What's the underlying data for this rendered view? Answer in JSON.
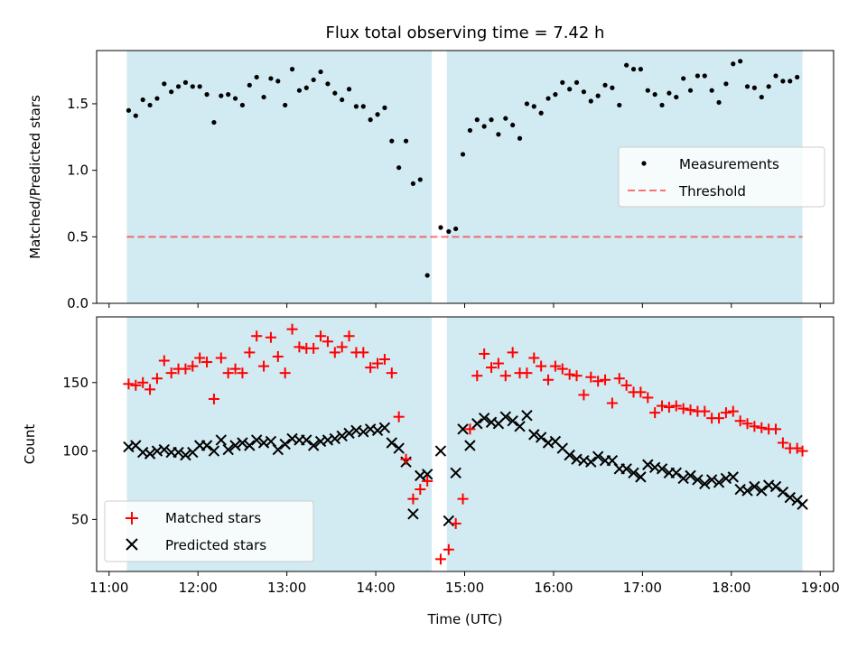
{
  "chart_data": {
    "type": "scatter",
    "title": "Flux total observing time = 7.42 h",
    "xlabel": "Time (UTC)",
    "x_tick_labels": [
      "11:00",
      "12:00",
      "13:00",
      "14:00",
      "15:00",
      "16:00",
      "17:00",
      "18:00",
      "19:00"
    ],
    "x_tick_values": [
      11,
      12,
      13,
      14,
      15,
      16,
      17,
      18,
      19
    ],
    "xlim": [
      10.86,
      19.15
    ],
    "colors": {
      "shade": "#add8e6",
      "measure": "#000000",
      "threshold": "#ff0000",
      "matched": "#ff0000",
      "predicted": "#000000"
    },
    "observing_windows": [
      [
        11.2,
        14.63
      ],
      [
        14.8,
        18.8
      ]
    ],
    "top": {
      "ylabel": "Matched/Predicted stars",
      "ylim": [
        0,
        1.9
      ],
      "y_tick_values": [
        0,
        0.5,
        1,
        1.5
      ],
      "y_tick_labels": [
        "0.0",
        "0.5",
        "1.0",
        "1.5"
      ],
      "legend": {
        "position": "center-right",
        "entries": [
          "Measurements",
          "Threshold"
        ]
      },
      "threshold": 0.5,
      "series": [
        {
          "name": "Measurements",
          "marker": "dot",
          "x": [
            11.22,
            11.3,
            11.38,
            11.46,
            11.54,
            11.62,
            11.7,
            11.78,
            11.86,
            11.94,
            12.02,
            12.1,
            12.18,
            12.26,
            12.34,
            12.42,
            12.5,
            12.58,
            12.66,
            12.74,
            12.82,
            12.9,
            12.98,
            13.06,
            13.14,
            13.22,
            13.3,
            13.38,
            13.46,
            13.54,
            13.62,
            13.7,
            13.78,
            13.86,
            13.94,
            14.02,
            14.1,
            14.18,
            14.26,
            14.34,
            14.42,
            14.5,
            14.58,
            14.73,
            14.82,
            14.9,
            14.98,
            15.06,
            15.14,
            15.22,
            15.3,
            15.38,
            15.46,
            15.54,
            15.62,
            15.7,
            15.78,
            15.86,
            15.94,
            16.02,
            16.1,
            16.18,
            16.26,
            16.34,
            16.42,
            16.5,
            16.58,
            16.66,
            16.74,
            16.82,
            16.9,
            16.98,
            17.06,
            17.14,
            17.22,
            17.3,
            17.38,
            17.46,
            17.54,
            17.62,
            17.7,
            17.78,
            17.86,
            17.94,
            18.02,
            18.1,
            18.18,
            18.26,
            18.34,
            18.42,
            18.5,
            18.58,
            18.66,
            18.74
          ],
          "y": [
            1.45,
            1.41,
            1.53,
            1.49,
            1.54,
            1.65,
            1.59,
            1.63,
            1.66,
            1.63,
            1.63,
            1.57,
            1.36,
            1.56,
            1.57,
            1.54,
            1.49,
            1.64,
            1.7,
            1.55,
            1.69,
            1.67,
            1.49,
            1.76,
            1.6,
            1.62,
            1.68,
            1.74,
            1.65,
            1.58,
            1.53,
            1.61,
            1.48,
            1.48,
            1.38,
            1.42,
            1.47,
            1.22,
            1.02,
            1.22,
            0.9,
            0.93,
            0.21,
            0.57,
            0.54,
            0.56,
            1.12,
            1.3,
            1.38,
            1.33,
            1.38,
            1.27,
            1.39,
            1.34,
            1.24,
            1.5,
            1.48,
            1.43,
            1.54,
            1.57,
            1.66,
            1.61,
            1.66,
            1.59,
            1.52,
            1.56,
            1.64,
            1.62,
            1.49,
            1.79,
            1.76,
            1.76,
            1.6,
            1.57,
            1.49,
            1.58,
            1.55,
            1.69,
            1.6,
            1.71,
            1.71,
            1.6,
            1.51,
            1.65,
            1.8,
            1.82,
            1.63,
            1.62,
            1.55,
            1.63,
            1.71,
            1.67,
            1.67,
            1.7
          ]
        }
      ]
    },
    "bottom": {
      "ylabel": "Count",
      "ylim": [
        12,
        198
      ],
      "y_tick_values": [
        50,
        100,
        150
      ],
      "y_tick_labels": [
        "50",
        "100",
        "150"
      ],
      "legend": {
        "position": "lower-left",
        "entries": [
          "Matched stars",
          "Predicted stars"
        ]
      },
      "series": [
        {
          "name": "Matched stars",
          "marker": "plus",
          "x": [
            11.22,
            11.3,
            11.38,
            11.46,
            11.54,
            11.62,
            11.7,
            11.78,
            11.86,
            11.94,
            12.02,
            12.1,
            12.18,
            12.26,
            12.34,
            12.42,
            12.5,
            12.58,
            12.66,
            12.74,
            12.82,
            12.9,
            12.98,
            13.06,
            13.14,
            13.22,
            13.3,
            13.38,
            13.46,
            13.54,
            13.62,
            13.7,
            13.78,
            13.86,
            13.94,
            14.02,
            14.1,
            14.18,
            14.26,
            14.34,
            14.42,
            14.5,
            14.58,
            14.73,
            14.82,
            14.9,
            14.98,
            15.06,
            15.14,
            15.22,
            15.3,
            15.38,
            15.46,
            15.54,
            15.62,
            15.7,
            15.78,
            15.86,
            15.94,
            16.02,
            16.1,
            16.18,
            16.26,
            16.34,
            16.42,
            16.5,
            16.58,
            16.66,
            16.74,
            16.82,
            16.9,
            16.98,
            17.06,
            17.14,
            17.22,
            17.3,
            17.38,
            17.46,
            17.54,
            17.62,
            17.7,
            17.78,
            17.86,
            17.94,
            18.02,
            18.1,
            18.18,
            18.26,
            18.34,
            18.42,
            18.5,
            18.58,
            18.66,
            18.74,
            18.8
          ],
          "y": [
            149,
            148,
            150,
            145,
            153,
            166,
            157,
            160,
            160,
            162,
            168,
            165,
            138,
            168,
            157,
            160,
            157,
            172,
            184,
            162,
            183,
            169,
            157,
            189,
            176,
            175,
            175,
            184,
            180,
            172,
            176,
            184,
            172,
            172,
            161,
            164,
            167,
            157,
            125,
            94,
            65,
            72,
            78,
            21,
            28,
            47,
            65,
            116,
            155,
            171,
            161,
            164,
            155,
            172,
            157,
            157,
            168,
            162,
            152,
            162,
            160,
            156,
            155,
            141,
            154,
            151,
            152,
            135,
            153,
            148,
            143,
            143,
            139,
            128,
            133,
            132,
            133,
            131,
            130,
            129,
            129,
            124,
            124,
            128,
            129,
            122,
            120,
            118,
            117,
            116,
            116,
            106,
            102,
            102,
            100
          ]
        },
        {
          "name": "Predicted stars",
          "marker": "x",
          "x": [
            11.22,
            11.3,
            11.38,
            11.46,
            11.54,
            11.62,
            11.7,
            11.78,
            11.86,
            11.94,
            12.02,
            12.1,
            12.18,
            12.26,
            12.34,
            12.42,
            12.5,
            12.58,
            12.66,
            12.74,
            12.82,
            12.9,
            12.98,
            13.06,
            13.14,
            13.22,
            13.3,
            13.38,
            13.46,
            13.54,
            13.62,
            13.7,
            13.78,
            13.86,
            13.94,
            14.02,
            14.1,
            14.18,
            14.26,
            14.34,
            14.42,
            14.5,
            14.58,
            14.73,
            14.82,
            14.9,
            14.98,
            15.06,
            15.14,
            15.22,
            15.3,
            15.38,
            15.46,
            15.54,
            15.62,
            15.7,
            15.78,
            15.86,
            15.94,
            16.02,
            16.1,
            16.18,
            16.26,
            16.34,
            16.42,
            16.5,
            16.58,
            16.66,
            16.74,
            16.82,
            16.9,
            16.98,
            17.06,
            17.14,
            17.22,
            17.3,
            17.38,
            17.46,
            17.54,
            17.62,
            17.7,
            17.78,
            17.86,
            17.94,
            18.02,
            18.1,
            18.18,
            18.26,
            18.34,
            18.42,
            18.5,
            18.58,
            18.66,
            18.74,
            18.8
          ],
          "y": [
            103,
            104,
            99,
            98,
            100,
            101,
            99,
            99,
            97,
            99,
            104,
            104,
            100,
            108,
            101,
            104,
            106,
            104,
            108,
            106,
            107,
            101,
            105,
            109,
            108,
            108,
            104,
            107,
            108,
            109,
            111,
            113,
            115,
            114,
            116,
            115,
            117,
            106,
            102,
            92,
            54,
            82,
            83,
            100,
            49,
            84,
            116,
            104,
            120,
            124,
            121,
            120,
            125,
            122,
            118,
            126,
            112,
            110,
            106,
            107,
            102,
            97,
            94,
            93,
            92,
            96,
            93,
            93,
            87,
            87,
            84,
            81,
            90,
            88,
            87,
            84,
            84,
            80,
            82,
            79,
            76,
            79,
            77,
            80,
            81,
            72,
            71,
            74,
            71,
            75,
            74,
            70,
            66,
            64,
            61
          ]
        }
      ]
    }
  }
}
